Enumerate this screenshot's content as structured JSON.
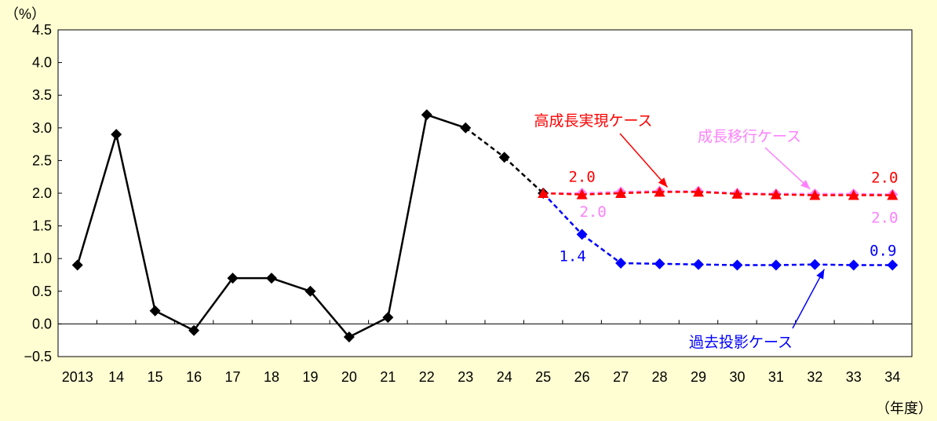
{
  "chart_data": {
    "type": "line",
    "ylabel": "（%）",
    "xlabel": "（年度）",
    "ylim": [
      -0.5,
      4.5
    ],
    "y_ticks": [
      "4.5",
      "4.0",
      "3.5",
      "3.0",
      "2.5",
      "2.0",
      "1.5",
      "1.0",
      "0.5",
      "0.0",
      "−0.5"
    ],
    "categories": [
      "2013",
      "14",
      "15",
      "16",
      "17",
      "18",
      "19",
      "20",
      "21",
      "22",
      "23",
      "24",
      "25",
      "26",
      "27",
      "28",
      "29",
      "30",
      "31",
      "32",
      "33",
      "34"
    ],
    "grid": false,
    "series": [
      {
        "key": "actual",
        "color": "#000000",
        "marker": "diamond",
        "values": [
          0.9,
          2.9,
          0.2,
          -0.1,
          0.7,
          0.7,
          0.5,
          -0.2,
          0.1,
          3.2,
          3.0,
          2.55,
          2.0,
          null,
          null,
          null,
          null,
          null,
          null,
          null,
          null,
          null
        ],
        "dashed_from_index": 10
      },
      {
        "key": "high",
        "name": "高成長実現ケース",
        "color": "#ff0000",
        "marker": "triangle",
        "values": [
          null,
          null,
          null,
          null,
          null,
          null,
          null,
          null,
          null,
          null,
          null,
          null,
          2.0,
          1.98,
          2.0,
          2.02,
          2.02,
          1.99,
          1.98,
          1.97,
          1.97,
          1.97
        ],
        "dashed_from_index": 12
      },
      {
        "key": "transition",
        "name": "成長移行ケース",
        "color": "#ff80ff",
        "marker": "diamond",
        "values": [
          null,
          null,
          null,
          null,
          null,
          null,
          null,
          null,
          null,
          null,
          null,
          null,
          2.0,
          2.0,
          2.02,
          2.03,
          2.03,
          2.0,
          1.99,
          1.99,
          1.99,
          1.98
        ],
        "dashed_from_index": 12
      },
      {
        "key": "past",
        "name": "過去投影ケース",
        "color": "#0000ff",
        "marker": "diamond",
        "values": [
          null,
          null,
          null,
          null,
          null,
          null,
          null,
          null,
          null,
          null,
          null,
          null,
          2.0,
          1.37,
          0.93,
          0.92,
          0.91,
          0.9,
          0.9,
          0.91,
          0.9,
          0.9
        ],
        "dashed_from_index": 12
      }
    ],
    "value_labels": [
      {
        "text": "2.0",
        "series": "high",
        "index": 13,
        "color": "#ff0000"
      },
      {
        "text": "2.0",
        "series": "high",
        "index": 21,
        "color": "#ff0000"
      },
      {
        "text": "2.0",
        "series": "transition",
        "index": 13,
        "color": "#ff80ff"
      },
      {
        "text": "2.0",
        "series": "transition",
        "index": 21,
        "color": "#ff80ff"
      },
      {
        "text": "1.4",
        "series": "past",
        "index": 13,
        "color": "#0000ff"
      },
      {
        "text": "0.9",
        "series": "past",
        "index": 21,
        "color": "#0000ff"
      }
    ],
    "annotations": [
      {
        "text": "高成長実現ケース",
        "color": "#ff0000",
        "points_to": "high"
      },
      {
        "text": "成長移行ケース",
        "color": "#ff80ff",
        "points_to": "transition"
      },
      {
        "text": "過去投影ケース",
        "color": "#0000ff",
        "points_to": "past"
      }
    ]
  }
}
